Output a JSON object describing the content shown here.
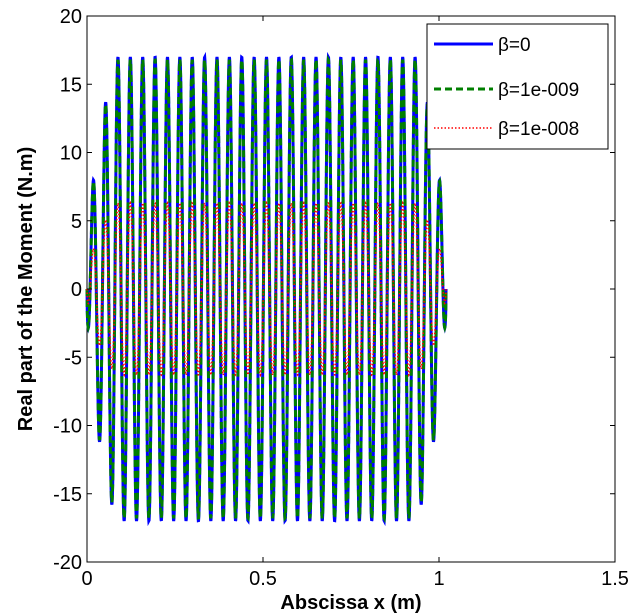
{
  "chart_data": {
    "type": "line",
    "title": "",
    "xlabel": "Abscissa x (m)",
    "ylabel": "Real part of the Moment (N.m)",
    "xlim": [
      0,
      1.5
    ],
    "ylim": [
      -20,
      20
    ],
    "xticks": [
      0,
      0.5,
      1,
      1.5
    ],
    "xtick_labels": [
      "0",
      "0.5",
      "1",
      "1.5"
    ],
    "yticks": [
      -20,
      -15,
      -10,
      -5,
      0,
      5,
      10,
      15,
      20
    ],
    "ytick_labels": [
      "-20",
      "-15",
      "-10",
      "-5",
      "0",
      "5",
      "10",
      "15",
      "20"
    ],
    "grid": false,
    "legend_position": "top-right",
    "x_extent": [
      0,
      1.02
    ],
    "oscillation_peaks": 29,
    "series": [
      {
        "name": "β=0",
        "color": "#0000ff",
        "dash": "solid",
        "amplitude": 17.0
      },
      {
        "name": "β=1e-009",
        "color": "#007f00",
        "dash": "dashed",
        "amplitude": 16.8
      },
      {
        "name": "β=1e-008",
        "color": "#ff0000",
        "dash": "dotted",
        "amplitude": 6.3
      }
    ]
  }
}
